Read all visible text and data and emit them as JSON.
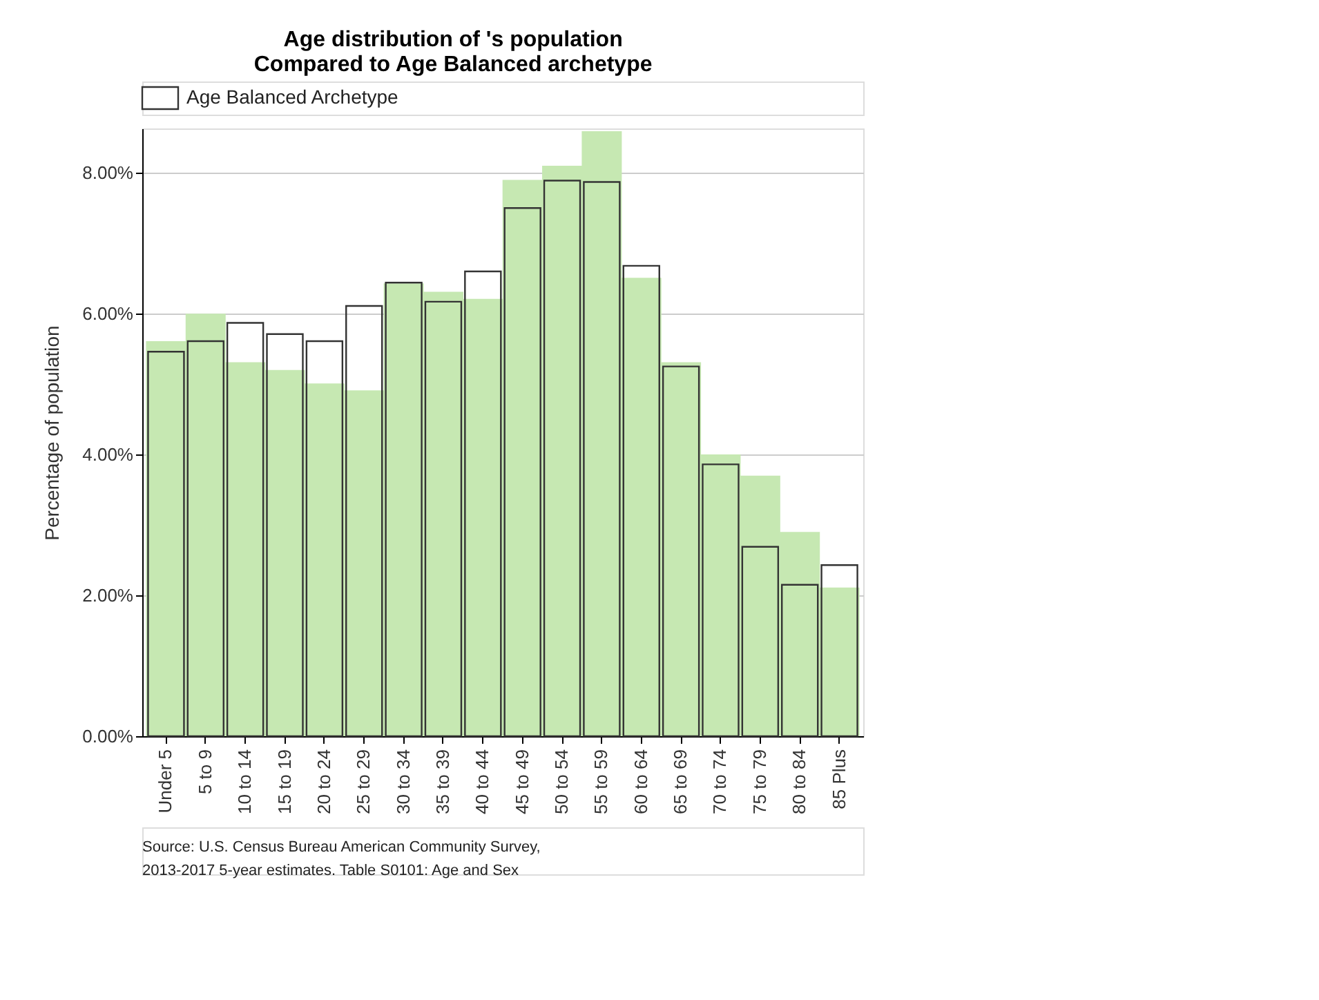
{
  "chart_data": {
    "type": "bar",
    "title": "Age distribution of 's population",
    "subtitle": "Compared to Age Balanced archetype",
    "ylabel": "Percentage of population",
    "categories": [
      "Under 5",
      "5 to 9",
      "10 to 14",
      "15 to 19",
      "20 to 24",
      "25 to 29",
      "30 to 34",
      "35 to 39",
      "40 to 44",
      "45 to 49",
      "50 to 54",
      "55 to 59",
      "60 to 64",
      "65 to 69",
      "70 to 74",
      "75 to 79",
      "80 to 84",
      "85 Plus"
    ],
    "series": [
      {
        "color": "#c6e8b2",
        "values": [
          5.61,
          6.0,
          5.31,
          5.2,
          5.01,
          4.91,
          6.43,
          6.31,
          6.21,
          7.9,
          8.1,
          8.59,
          6.51,
          5.31,
          4.0,
          3.7,
          2.9,
          2.11
        ]
      },
      {
        "name": "Age Balanced Archetype",
        "color": "#333333",
        "values": [
          5.46,
          5.61,
          5.87,
          5.71,
          5.61,
          6.11,
          6.44,
          6.17,
          6.6,
          7.5,
          7.89,
          7.87,
          6.68,
          5.25,
          3.86,
          2.69,
          2.15,
          2.43
        ]
      }
    ],
    "ylim": [
      0,
      8.63
    ],
    "yticks": [
      {
        "value": 0,
        "label": "0.00%"
      },
      {
        "value": 2,
        "label": "2.00%"
      },
      {
        "value": 4,
        "label": "4.00%"
      },
      {
        "value": 6,
        "label": "6.00%"
      },
      {
        "value": 8,
        "label": "8.00%"
      }
    ],
    "grid": "y",
    "legend": "top",
    "annotations": [
      "Source: U.S. Census Bureau American Community Survey,",
      "2013-2017 5-year estimates. Table S0101: Age and Sex"
    ]
  }
}
